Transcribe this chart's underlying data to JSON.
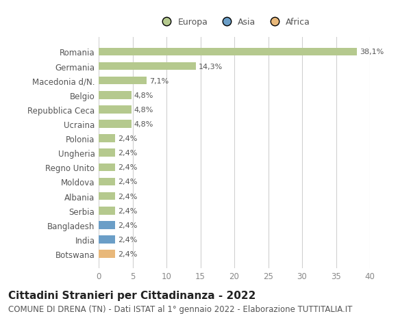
{
  "categories": [
    "Romania",
    "Germania",
    "Macedonia d/N.",
    "Belgio",
    "Repubblica Ceca",
    "Ucraina",
    "Polonia",
    "Ungheria",
    "Regno Unito",
    "Moldova",
    "Albania",
    "Serbia",
    "Bangladesh",
    "India",
    "Botswana"
  ],
  "values": [
    38.1,
    14.3,
    7.1,
    4.8,
    4.8,
    4.8,
    2.4,
    2.4,
    2.4,
    2.4,
    2.4,
    2.4,
    2.4,
    2.4,
    2.4
  ],
  "labels": [
    "38,1%",
    "14,3%",
    "7,1%",
    "4,8%",
    "4,8%",
    "4,8%",
    "2,4%",
    "2,4%",
    "2,4%",
    "2,4%",
    "2,4%",
    "2,4%",
    "2,4%",
    "2,4%",
    "2,4%"
  ],
  "colors": [
    "#b5c98e",
    "#b5c98e",
    "#b5c98e",
    "#b5c98e",
    "#b5c98e",
    "#b5c98e",
    "#b5c98e",
    "#b5c98e",
    "#b5c98e",
    "#b5c98e",
    "#b5c98e",
    "#b5c98e",
    "#6b9ec7",
    "#6b9ec7",
    "#e8b87a"
  ],
  "legend_labels": [
    "Europa",
    "Asia",
    "Africa"
  ],
  "legend_colors": [
    "#b5c98e",
    "#6b9ec7",
    "#e8b87a"
  ],
  "xlim": [
    0,
    40
  ],
  "xticks": [
    0,
    5,
    10,
    15,
    20,
    25,
    30,
    35,
    40
  ],
  "title": "Cittadini Stranieri per Cittadinanza - 2022",
  "subtitle": "COMUNE DI DRENA (TN) - Dati ISTAT al 1° gennaio 2022 - Elaborazione TUTTITALIA.IT",
  "bg_color": "#ffffff",
  "grid_color": "#d0d0d0",
  "bar_height": 0.55,
  "label_fontsize": 8.0,
  "ytick_fontsize": 8.5,
  "xtick_fontsize": 8.5,
  "title_fontsize": 11,
  "subtitle_fontsize": 8.5
}
